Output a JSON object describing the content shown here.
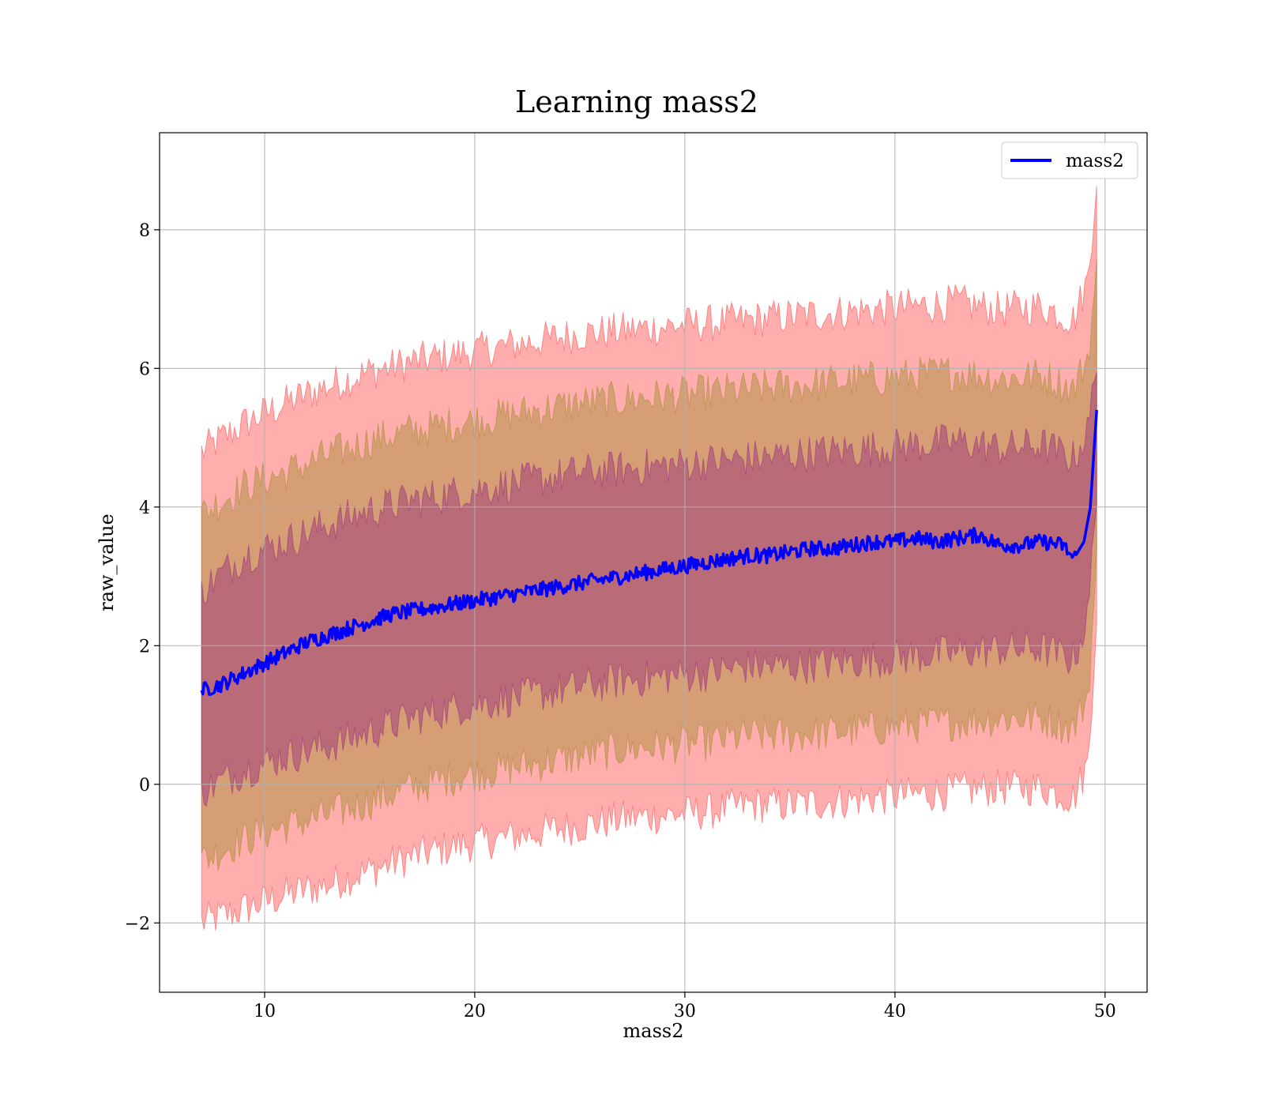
{
  "chart_data": {
    "type": "line",
    "title": "Learning mass2",
    "xlabel": "mass2",
    "ylabel": "raw_value",
    "xlim": [
      5,
      52
    ],
    "ylim": [
      -3,
      9.4
    ],
    "xticks": [
      10,
      20,
      30,
      40,
      50
    ],
    "xtick_labels": [
      "10",
      "20",
      "30",
      "40",
      "50"
    ],
    "yticks": [
      -2,
      0,
      2,
      4,
      6,
      8
    ],
    "ytick_labels": [
      "−2",
      "0",
      "2",
      "4",
      "6",
      "8"
    ],
    "grid": true,
    "legend": {
      "position": "top-right",
      "entries": [
        "mass2"
      ]
    },
    "series": [
      {
        "name": "mass2",
        "kind": "line",
        "color": "#0000ff",
        "x": [
          7.0,
          8.0,
          9.0,
          10.0,
          11.0,
          12.0,
          13.0,
          14.0,
          15.0,
          16.0,
          17.0,
          18.0,
          19.0,
          20.0,
          21.0,
          22.0,
          23.0,
          24.0,
          25.0,
          26.0,
          27.0,
          28.0,
          29.0,
          30.0,
          31.0,
          32.0,
          33.0,
          34.0,
          35.0,
          36.0,
          37.0,
          38.0,
          39.0,
          40.0,
          41.0,
          42.0,
          43.0,
          44.0,
          45.0,
          46.0,
          47.0,
          48.0,
          48.5,
          49.0,
          49.3,
          49.6
        ],
        "y": [
          1.35,
          1.45,
          1.6,
          1.75,
          1.9,
          2.05,
          2.15,
          2.25,
          2.35,
          2.45,
          2.5,
          2.55,
          2.6,
          2.65,
          2.7,
          2.75,
          2.8,
          2.85,
          2.9,
          2.95,
          3.0,
          3.05,
          3.1,
          3.15,
          3.2,
          3.25,
          3.3,
          3.3,
          3.35,
          3.4,
          3.4,
          3.45,
          3.5,
          3.5,
          3.55,
          3.5,
          3.55,
          3.6,
          3.45,
          3.45,
          3.5,
          3.45,
          3.25,
          3.5,
          4.0,
          5.4
        ]
      }
    ],
    "bands": [
      {
        "sigma": 3,
        "color": "#ff0000",
        "opacity": 0.32,
        "x": [
          7.0,
          9.0,
          11.0,
          13.0,
          15.0,
          17.0,
          19.0,
          21.0,
          23.0,
          25.0,
          27.0,
          29.0,
          31.0,
          33.0,
          35.0,
          37.0,
          39.0,
          41.0,
          43.0,
          45.0,
          47.0,
          48.5,
          49.2,
          49.6
        ],
        "upper": [
          4.8,
          5.2,
          5.5,
          5.75,
          5.95,
          6.1,
          6.2,
          6.3,
          6.4,
          6.5,
          6.55,
          6.6,
          6.65,
          6.7,
          6.75,
          6.8,
          6.85,
          6.9,
          6.95,
          6.85,
          6.9,
          6.7,
          7.3,
          8.8
        ],
        "lower": [
          -2.0,
          -1.8,
          -1.6,
          -1.45,
          -1.25,
          -1.05,
          -0.9,
          -0.8,
          -0.7,
          -0.6,
          -0.5,
          -0.45,
          -0.4,
          -0.3,
          -0.3,
          -0.25,
          -0.2,
          -0.15,
          -0.1,
          -0.05,
          -0.05,
          -0.2,
          0.3,
          2.5
        ]
      },
      {
        "sigma": 2,
        "color": "#808000",
        "opacity": 0.32,
        "x": [
          7.0,
          9.0,
          11.0,
          13.0,
          15.0,
          17.0,
          19.0,
          21.0,
          23.0,
          25.0,
          27.0,
          29.0,
          31.0,
          33.0,
          35.0,
          37.0,
          39.0,
          41.0,
          43.0,
          45.0,
          47.0,
          48.5,
          49.2,
          49.6
        ],
        "upper": [
          3.9,
          4.3,
          4.5,
          4.75,
          4.95,
          5.1,
          5.2,
          5.3,
          5.4,
          5.5,
          5.55,
          5.6,
          5.65,
          5.7,
          5.75,
          5.8,
          5.85,
          5.9,
          5.95,
          5.85,
          5.9,
          5.7,
          6.2,
          7.4
        ],
        "lower": [
          -1.1,
          -0.8,
          -0.6,
          -0.45,
          -0.25,
          -0.05,
          0.1,
          0.2,
          0.3,
          0.4,
          0.5,
          0.55,
          0.6,
          0.7,
          0.7,
          0.75,
          0.8,
          0.85,
          0.9,
          0.95,
          0.95,
          0.8,
          1.3,
          3.2
        ]
      },
      {
        "sigma": 1,
        "color": "#800080",
        "opacity": 0.32,
        "x": [
          7.0,
          9.0,
          11.0,
          13.0,
          15.0,
          17.0,
          19.0,
          21.0,
          23.0,
          25.0,
          27.0,
          29.0,
          31.0,
          33.0,
          35.0,
          37.0,
          39.0,
          41.0,
          43.0,
          45.0,
          47.0,
          48.5,
          49.2,
          49.6
        ],
        "upper": [
          2.8,
          3.3,
          3.5,
          3.75,
          3.95,
          4.1,
          4.2,
          4.3,
          4.4,
          4.5,
          4.55,
          4.6,
          4.65,
          4.7,
          4.75,
          4.8,
          4.85,
          4.9,
          4.95,
          4.85,
          4.9,
          4.7,
          5.1,
          6.2
        ],
        "lower": [
          -0.1,
          0.2,
          0.4,
          0.55,
          0.75,
          0.95,
          1.1,
          1.2,
          1.3,
          1.4,
          1.5,
          1.55,
          1.6,
          1.7,
          1.7,
          1.75,
          1.8,
          1.85,
          1.9,
          1.95,
          1.95,
          1.8,
          2.4,
          4.3
        ]
      }
    ]
  }
}
